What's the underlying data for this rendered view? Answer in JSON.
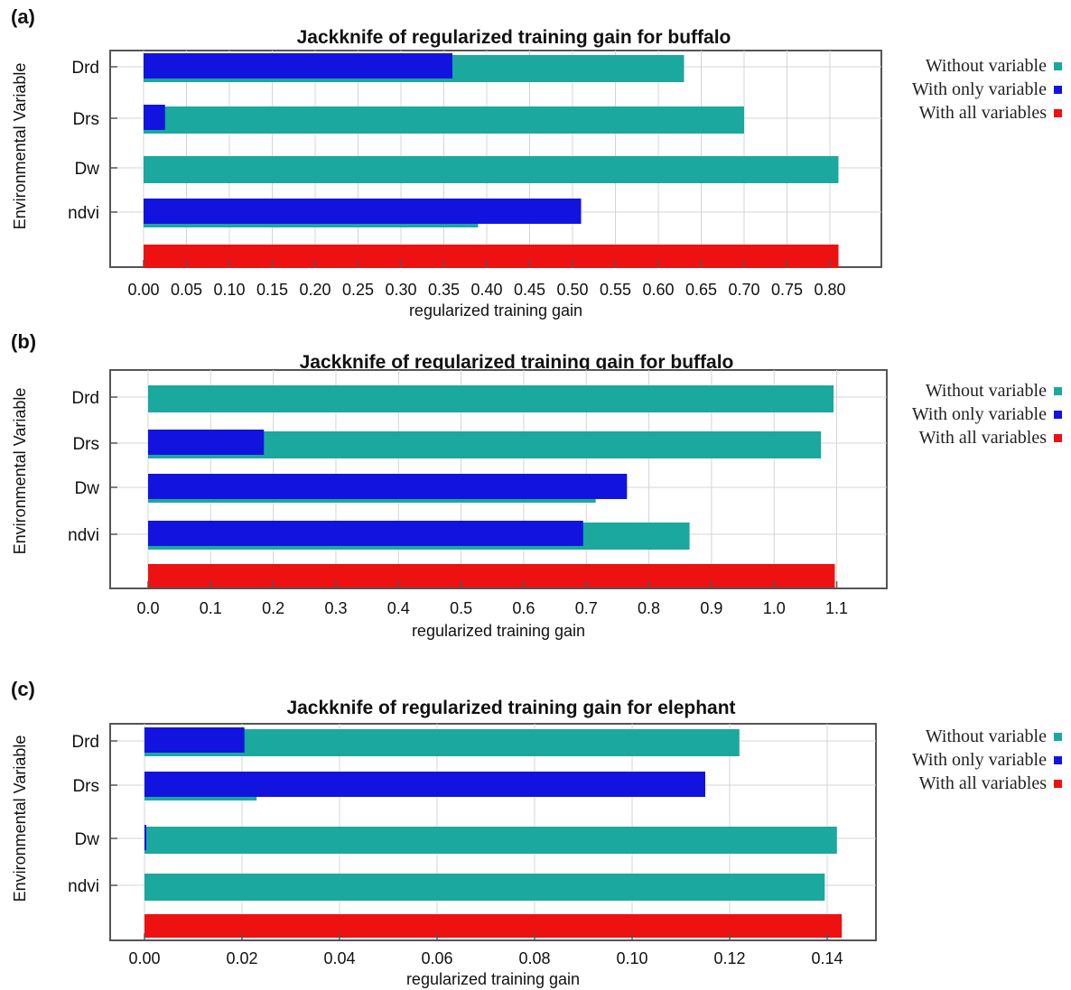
{
  "panels": [
    {
      "label": "(a)",
      "legend": [
        {
          "label": "Without variable",
          "color": "#1aa89f"
        },
        {
          "label": "With only variable",
          "color": "#1313e0"
        },
        {
          "label": "With all variables",
          "color": "#ee1111"
        }
      ]
    },
    {
      "label": "(b)",
      "legend": [
        {
          "label": "Without variable",
          "color": "#1aa89f"
        },
        {
          "label": "With only variable",
          "color": "#1313e0"
        },
        {
          "label": "With all variables",
          "color": "#ee1111"
        }
      ]
    },
    {
      "label": "(c)",
      "legend": [
        {
          "label": "Without variable",
          "color": "#1aa89f"
        },
        {
          "label": "With only variable",
          "color": "#1313e0"
        },
        {
          "label": "With all variables",
          "color": "#ee1111"
        }
      ]
    }
  ],
  "chart_data": [
    {
      "type": "bar",
      "orientation": "horizontal",
      "title": "Jackknife of regularized training gain for buffalo",
      "xlabel": "regularized training gain",
      "ylabel": "Environmental Variable",
      "categories": [
        "Drd",
        "Drs",
        "Dw",
        "ndvi"
      ],
      "xlim": [
        0,
        0.86
      ],
      "xticks": [
        "0.00",
        "0.05",
        "0.10",
        "0.15",
        "0.20",
        "0.25",
        "0.30",
        "0.35",
        "0.40",
        "0.45",
        "0.50",
        "0.55",
        "0.60",
        "0.65",
        "0.70",
        "0.75",
        "0.80"
      ],
      "series": [
        {
          "name": "Without variable",
          "color": "#1aa89f",
          "values": [
            0.63,
            0.7,
            0.81,
            0.39
          ]
        },
        {
          "name": "With only variable",
          "color": "#1313e0",
          "values": [
            0.36,
            0.025,
            0.0,
            0.51
          ]
        },
        {
          "name": "With all variables",
          "color": "#ee1111",
          "value": 0.81
        }
      ],
      "grid": true,
      "legend_position": "right"
    },
    {
      "type": "bar",
      "orientation": "horizontal",
      "title": "Jackknife of regularized training gain for buffalo",
      "xlabel": "regularized training gain",
      "ylabel": "Environmental Variable",
      "categories": [
        "Drd",
        "Drs",
        "Dw",
        "ndvi"
      ],
      "xlim": [
        0,
        1.18
      ],
      "xticks": [
        "0.0",
        "0.1",
        "0.2",
        "0.3",
        "0.4",
        "0.5",
        "0.6",
        "0.7",
        "0.8",
        "0.9",
        "1.0",
        "1.1"
      ],
      "series": [
        {
          "name": "Without variable",
          "color": "#1aa89f",
          "values": [
            1.095,
            1.075,
            0.715,
            0.865
          ]
        },
        {
          "name": "With only variable",
          "color": "#1313e0",
          "values": [
            0.0,
            0.185,
            0.765,
            0.695
          ]
        },
        {
          "name": "With all variables",
          "color": "#ee1111",
          "value": 1.097
        }
      ],
      "grid": true,
      "legend_position": "right"
    },
    {
      "type": "bar",
      "orientation": "horizontal",
      "title": "Jackknife of regularized training gain for elephant",
      "xlabel": "regularized training gain",
      "ylabel": "Environmental Variable",
      "categories": [
        "Drd",
        "Drs",
        "Dw",
        "ndvi"
      ],
      "xlim": [
        0,
        0.15
      ],
      "xticks": [
        "0.00",
        "0.02",
        "0.04",
        "0.06",
        "0.08",
        "0.10",
        "0.12",
        "0.14"
      ],
      "series": [
        {
          "name": "Without variable",
          "color": "#1aa89f",
          "values": [
            0.122,
            0.023,
            0.142,
            0.1395
          ]
        },
        {
          "name": "With only variable",
          "color": "#1313e0",
          "values": [
            0.0205,
            0.115,
            0.0003,
            0.0
          ]
        },
        {
          "name": "With all variables",
          "color": "#ee1111",
          "value": 0.143
        }
      ],
      "grid": true,
      "legend_position": "right"
    }
  ]
}
